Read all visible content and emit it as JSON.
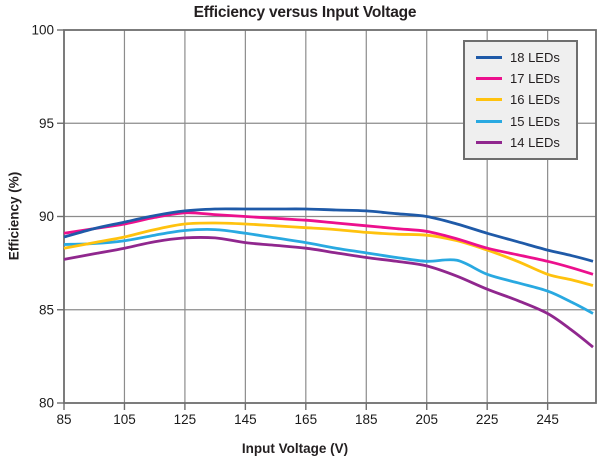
{
  "title": "Efficiency versus Input Voltage",
  "axes": {
    "x_label": "Input Voltage (V)",
    "y_label": "Efficiency (%)"
  },
  "colors": {
    "grid": "#8c8c8c",
    "border": "#6e6e6e",
    "text": "#1a1a1a",
    "legend_bg": "#efefef",
    "series_18": "#1f5aa8",
    "series_17": "#ec108d",
    "series_16": "#ffc20e",
    "series_15": "#29a9e1",
    "series_14": "#90278e"
  },
  "chart_data": {
    "type": "line",
    "title": "Efficiency versus Input Voltage",
    "xlabel": "Input Voltage (V)",
    "ylabel": "Efficiency (%)",
    "xlim": [
      85,
      261
    ],
    "ylim": [
      80,
      100
    ],
    "xticks": [
      85,
      105,
      125,
      145,
      165,
      185,
      205,
      225,
      245
    ],
    "yticks": [
      100,
      95,
      90,
      85,
      80
    ],
    "grid": true,
    "legend_position": "top-right",
    "x": [
      85,
      95,
      105,
      115,
      125,
      135,
      145,
      155,
      165,
      175,
      185,
      195,
      205,
      215,
      225,
      235,
      245,
      253,
      260
    ],
    "series": [
      {
        "name": "18 LEDs",
        "color": "#1f5aa8",
        "values": [
          88.9,
          89.35,
          89.7,
          90.05,
          90.3,
          90.4,
          90.4,
          90.4,
          90.4,
          90.35,
          90.3,
          90.15,
          90.0,
          89.6,
          89.1,
          88.65,
          88.2,
          87.9,
          87.6
        ]
      },
      {
        "name": "17 LEDs",
        "color": "#ec108d",
        "values": [
          89.1,
          89.35,
          89.6,
          89.95,
          90.2,
          90.1,
          90.0,
          89.9,
          89.8,
          89.65,
          89.5,
          89.35,
          89.2,
          88.8,
          88.3,
          87.95,
          87.6,
          87.25,
          86.9
        ]
      },
      {
        "name": "16 LEDs",
        "color": "#ffc20e",
        "values": [
          88.3,
          88.6,
          88.9,
          89.3,
          89.6,
          89.65,
          89.6,
          89.5,
          89.4,
          89.3,
          89.15,
          89.05,
          89.0,
          88.7,
          88.2,
          87.6,
          86.9,
          86.6,
          86.3
        ]
      },
      {
        "name": "15 LEDs",
        "color": "#29a9e1",
        "values": [
          88.5,
          88.55,
          88.7,
          89.0,
          89.25,
          89.3,
          89.1,
          88.85,
          88.6,
          88.3,
          88.05,
          87.8,
          87.6,
          87.65,
          86.9,
          86.45,
          86.0,
          85.4,
          84.8
        ]
      },
      {
        "name": "14 LEDs",
        "color": "#90278e",
        "values": [
          87.7,
          88.0,
          88.3,
          88.65,
          88.85,
          88.85,
          88.6,
          88.45,
          88.3,
          88.05,
          87.8,
          87.6,
          87.35,
          86.8,
          86.1,
          85.5,
          84.8,
          83.9,
          83.0
        ]
      }
    ]
  }
}
